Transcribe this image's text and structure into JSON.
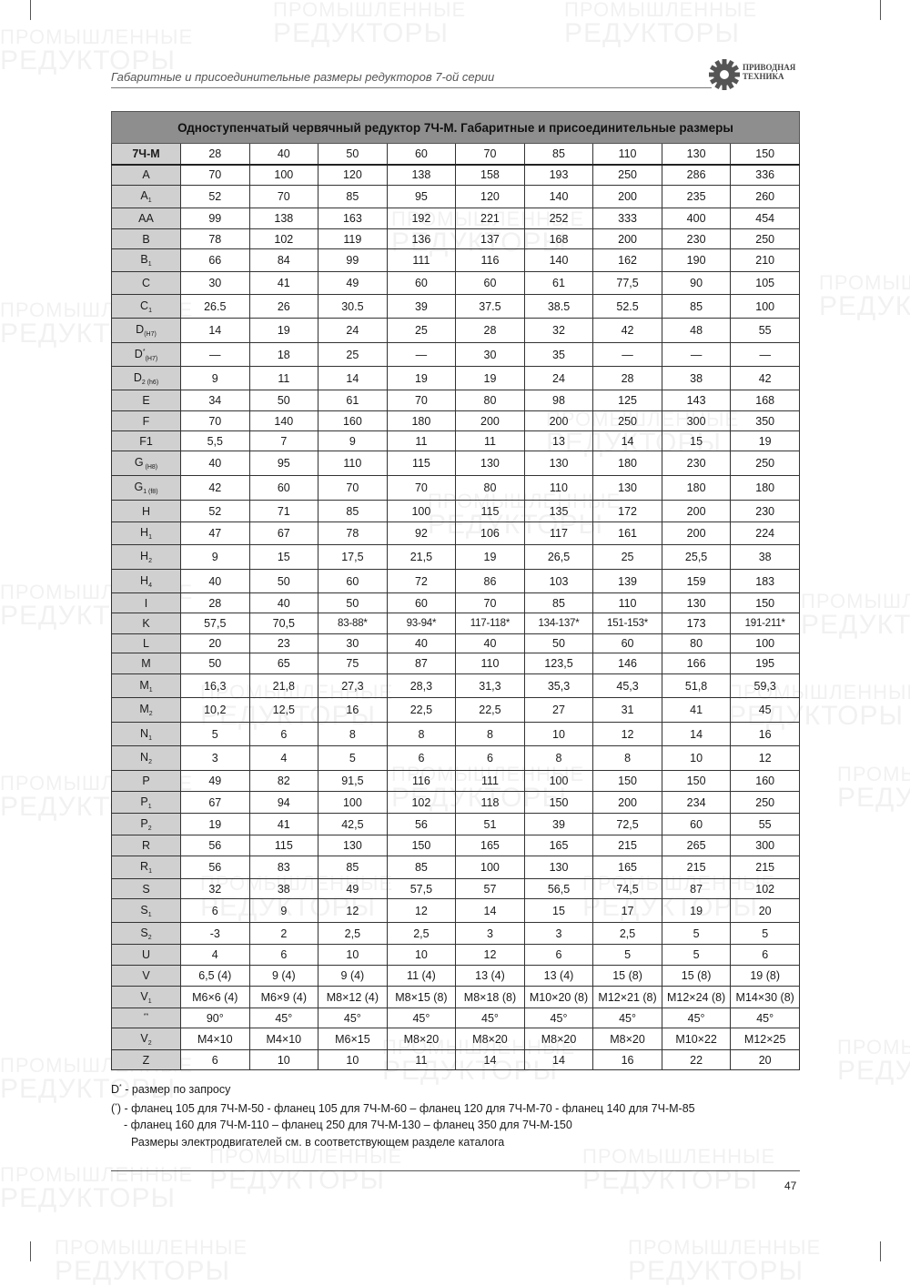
{
  "header": {
    "running_title": "Габаритные и присоединительные размеры редукторов 7-ой серии",
    "logo": {
      "line1": "ПРИВОДНАЯ",
      "line2": "ТЕХНИКА",
      "icon": "gear-icon"
    }
  },
  "watermark": {
    "line1": "ПРОМЫШЛЕННЫЕ",
    "line2": "РЕДУКТОРЫ"
  },
  "table": {
    "title": "Одноступенчатый червячный редуктор 7Ч-М. Габаритные и присоединительные размеры",
    "header": {
      "label": "7Ч-М",
      "sizes": [
        "28",
        "40",
        "50",
        "60",
        "70",
        "85",
        "110",
        "130",
        "150"
      ]
    },
    "rows": [
      {
        "label": "A",
        "sub": "",
        "sup": "",
        "values": [
          "70",
          "100",
          "120",
          "138",
          "158",
          "193",
          "250",
          "286",
          "336"
        ]
      },
      {
        "label": "A",
        "sub": "1",
        "sup": "",
        "values": [
          "52",
          "70",
          "85",
          "95",
          "120",
          "140",
          "200",
          "235",
          "260"
        ]
      },
      {
        "label": "AA",
        "sub": "",
        "sup": "",
        "values": [
          "99",
          "138",
          "163",
          "192",
          "221",
          "252",
          "333",
          "400",
          "454"
        ]
      },
      {
        "label": "B",
        "sub": "",
        "sup": "",
        "values": [
          "78",
          "102",
          "119",
          "136",
          "137",
          "168",
          "200",
          "230",
          "250"
        ]
      },
      {
        "label": "B",
        "sub": "1",
        "sup": "",
        "values": [
          "66",
          "84",
          "99",
          "111",
          "116",
          "140",
          "162",
          "190",
          "210"
        ]
      },
      {
        "label": "C",
        "sub": "",
        "sup": "",
        "values": [
          "30",
          "41",
          "49",
          "60",
          "60",
          "61",
          "77,5",
          "90",
          "105"
        ]
      },
      {
        "label": "C",
        "sub": "1",
        "sup": "",
        "values": [
          "26.5",
          "26",
          "30.5",
          "39",
          "37.5",
          "38.5",
          "52.5",
          "85",
          "100"
        ]
      },
      {
        "label": "D",
        "sub": "(H7)",
        "sup": "",
        "values": [
          "14",
          "19",
          "24",
          "25",
          "28",
          "32",
          "42",
          "48",
          "55"
        ]
      },
      {
        "label": "D",
        "sub": "(H7)",
        "sup": "*",
        "values": [
          "—",
          "18",
          "25",
          "—",
          "30",
          "35",
          "—",
          "—",
          "—"
        ]
      },
      {
        "label": "D",
        "sub": "2 (h6)",
        "sup": "",
        "values": [
          "9",
          "11",
          "14",
          "19",
          "19",
          "24",
          "28",
          "38",
          "42"
        ]
      },
      {
        "label": "E",
        "sub": "",
        "sup": "",
        "values": [
          "34",
          "50",
          "61",
          "70",
          "80",
          "98",
          "125",
          "143",
          "168"
        ]
      },
      {
        "label": "F",
        "sub": "",
        "sup": "",
        "values": [
          "70",
          "140",
          "160",
          "180",
          "200",
          "200",
          "250",
          "300",
          "350"
        ]
      },
      {
        "label": "F1",
        "sub": "",
        "sup": "",
        "values": [
          "5,5",
          "7",
          "9",
          "11",
          "11",
          "13",
          "14",
          "15",
          "19"
        ]
      },
      {
        "label": "G",
        "sub": " (H8)",
        "sup": "",
        "values": [
          "40",
          "95",
          "110",
          "115",
          "130",
          "130",
          "180",
          "230",
          "250"
        ]
      },
      {
        "label": "G",
        "sub": "1 (f8)",
        "sup": "",
        "values": [
          "42",
          "60",
          "70",
          "70",
          "80",
          "110",
          "130",
          "180",
          "180"
        ]
      },
      {
        "label": "H",
        "sub": "",
        "sup": "",
        "values": [
          "52",
          "71",
          "85",
          "100",
          "115",
          "135",
          "172",
          "200",
          "230"
        ]
      },
      {
        "label": "H",
        "sub": "1",
        "sup": "",
        "values": [
          "47",
          "67",
          "78",
          "92",
          "106",
          "117",
          "161",
          "200",
          "224"
        ]
      },
      {
        "label": "H",
        "sub": "2",
        "sup": "",
        "values": [
          "9",
          "15",
          "17,5",
          "21,5",
          "19",
          "26,5",
          "25",
          "25,5",
          "38"
        ]
      },
      {
        "label": "H",
        "sub": "4",
        "sup": "",
        "values": [
          "40",
          "50",
          "60",
          "72",
          "86",
          "103",
          "139",
          "159",
          "183"
        ]
      },
      {
        "label": "I",
        "sub": "",
        "sup": "",
        "values": [
          "28",
          "40",
          "50",
          "60",
          "70",
          "85",
          "110",
          "130",
          "150"
        ]
      },
      {
        "label": "K",
        "sub": "",
        "sup": "",
        "values": [
          "57,5",
          "70,5",
          "83-88*",
          "93-94*",
          "117-118*",
          "134-137*",
          "151-153*",
          "173",
          "191-211*"
        ]
      },
      {
        "label": "L",
        "sub": "",
        "sup": "",
        "values": [
          "20",
          "23",
          "30",
          "40",
          "40",
          "50",
          "60",
          "80",
          "100"
        ]
      },
      {
        "label": "M",
        "sub": "",
        "sup": "",
        "values": [
          "50",
          "65",
          "75",
          "87",
          "110",
          "123,5",
          "146",
          "166",
          "195"
        ]
      },
      {
        "label": "M",
        "sub": "1",
        "sup": "",
        "values": [
          "16,3",
          "21,8",
          "27,3",
          "28,3",
          "31,3",
          "35,3",
          "45,3",
          "51,8",
          "59,3"
        ]
      },
      {
        "label": "M",
        "sub": "2",
        "sup": "",
        "values": [
          "10,2",
          "12,5",
          "16",
          "22,5",
          "22,5",
          "27",
          "31",
          "41",
          "45"
        ]
      },
      {
        "label": "N",
        "sub": "1",
        "sup": "",
        "values": [
          "5",
          "6",
          "8",
          "8",
          "8",
          "10",
          "12",
          "14",
          "16"
        ]
      },
      {
        "label": "N",
        "sub": "2",
        "sup": "",
        "values": [
          "3",
          "4",
          "5",
          "6",
          "6",
          "8",
          "8",
          "10",
          "12"
        ]
      },
      {
        "label": "P",
        "sub": "",
        "sup": "",
        "values": [
          "49",
          "82",
          "91,5",
          "116",
          "111",
          "100",
          "150",
          "150",
          "160"
        ]
      },
      {
        "label": "P",
        "sub": "1",
        "sup": "",
        "values": [
          "67",
          "94",
          "100",
          "102",
          "118",
          "150",
          "200",
          "234",
          "250"
        ]
      },
      {
        "label": "P",
        "sub": "2",
        "sup": "",
        "values": [
          "19",
          "41",
          "42,5",
          "56",
          "51",
          "39",
          "72,5",
          "60",
          "55"
        ]
      },
      {
        "label": "R",
        "sub": "",
        "sup": "",
        "values": [
          "56",
          "115",
          "130",
          "150",
          "165",
          "165",
          "215",
          "265",
          "300"
        ]
      },
      {
        "label": "R",
        "sub": "1",
        "sup": "",
        "values": [
          "56",
          "83",
          "85",
          "85",
          "100",
          "130",
          "165",
          "215",
          "215"
        ]
      },
      {
        "label": "S",
        "sub": "",
        "sup": "",
        "values": [
          "32",
          "38",
          "49",
          "57,5",
          "57",
          "56,5",
          "74,5",
          "87",
          "102"
        ]
      },
      {
        "label": "S",
        "sub": "1",
        "sup": "",
        "values": [
          "6",
          "9",
          "12",
          "12",
          "14",
          "15",
          "17",
          "19",
          "20"
        ]
      },
      {
        "label": "S",
        "sub": "2",
        "sup": "",
        "values": [
          "-3",
          "2",
          "2,5",
          "2,5",
          "3",
          "3",
          "2,5",
          "5",
          "5"
        ]
      },
      {
        "label": "U",
        "sub": "",
        "sup": "",
        "values": [
          "4",
          "6",
          "10",
          "10",
          "12",
          "6",
          "5",
          "5",
          "6"
        ]
      },
      {
        "label": "V",
        "sub": "",
        "sup": "",
        "values": [
          "6,5 (4)",
          "9 (4)",
          "9 (4)",
          "11 (4)",
          "13 (4)",
          "13 (4)",
          "15 (8)",
          "15 (8)",
          "19 (8)"
        ]
      },
      {
        "label": "V",
        "sub": "1",
        "sup": "",
        "values": [
          "M6×6 (4)",
          "M6×9 (4)",
          "M8×12 (4)",
          "M8×15 (8)",
          "M8×18 (8)",
          "M10×20 (8)",
          "M12×21 (8)",
          "M12×24 (8)",
          "M14×30 (8)"
        ]
      },
      {
        "label": "",
        "sub": "",
        "sup": "**",
        "values": [
          "90°",
          "45°",
          "45°",
          "45°",
          "45°",
          "45°",
          "45°",
          "45°",
          "45°"
        ]
      },
      {
        "label": "V",
        "sub": "2",
        "sup": "",
        "values": [
          "M4×10",
          "M4×10",
          "M6×15",
          "M8×20",
          "M8×20",
          "M8×20",
          "M8×20",
          "M10×22",
          "M12×25"
        ]
      },
      {
        "label": "Z",
        "sub": "",
        "sup": "",
        "values": [
          "6",
          "10",
          "10",
          "11",
          "14",
          "14",
          "16",
          "22",
          "20"
        ]
      }
    ]
  },
  "notes": {
    "note1_label": "D",
    "note1_sup": "*",
    "note1_text": " - размер по запросу",
    "note2_prefix": "(",
    "note2_sup": "*",
    "note2_text": ") - фланец 105 для 7Ч-М-50 - фланец 105 для 7Ч-М-60 – фланец 120 для 7Ч-М-70 - фланец 140 для 7Ч-М-85",
    "note3": "- фланец 160 для 7Ч-М-110 – фланец 250 для 7Ч-М-130 – фланец 350 для 7Ч-М-150",
    "note4": "Размеры электродвигателей см. в соответствующем разделе каталога"
  },
  "footer": {
    "page_number": "47"
  }
}
